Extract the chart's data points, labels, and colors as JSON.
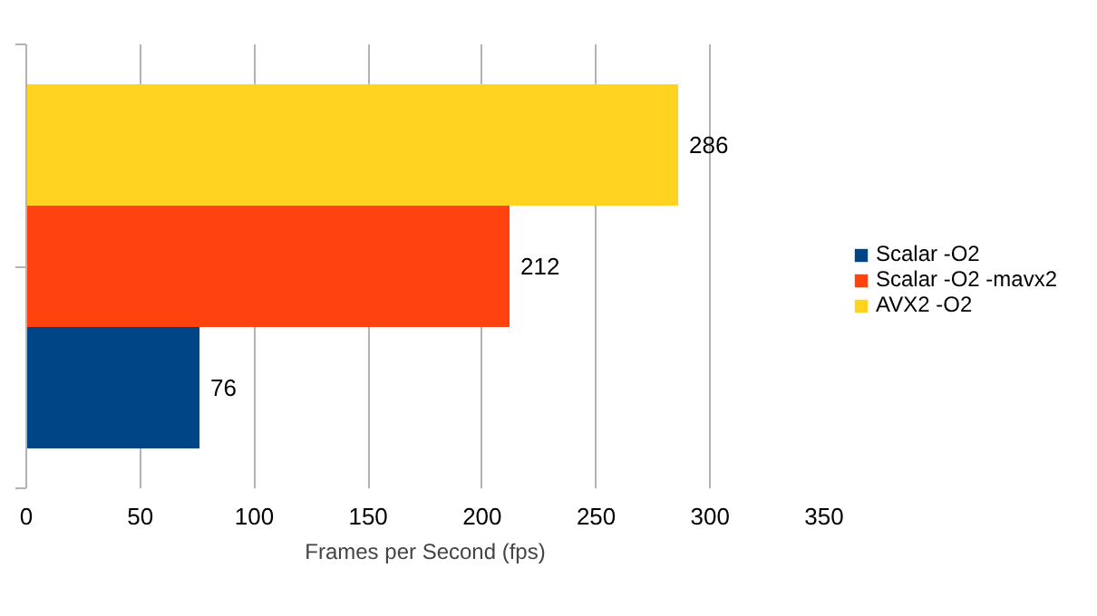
{
  "chart_data": {
    "type": "bar",
    "orientation": "horizontal",
    "categories": [
      null
    ],
    "xlabel": "Frames per Second (fps)",
    "series": [
      {
        "name": "Scalar -O2",
        "color": "#004586",
        "values": [
          76
        ]
      },
      {
        "name": "Scalar -O2 -mavx2",
        "color": "#ff420e",
        "values": [
          212
        ]
      },
      {
        "name": "AVX2 -O2",
        "color": "#ffd320",
        "values": [
          286
        ]
      }
    ],
    "xlim": [
      0,
      350
    ],
    "xticks": [
      0,
      50,
      100,
      150,
      200,
      250,
      300,
      350
    ],
    "grid": "x",
    "legend": "right",
    "data_labels": true
  }
}
